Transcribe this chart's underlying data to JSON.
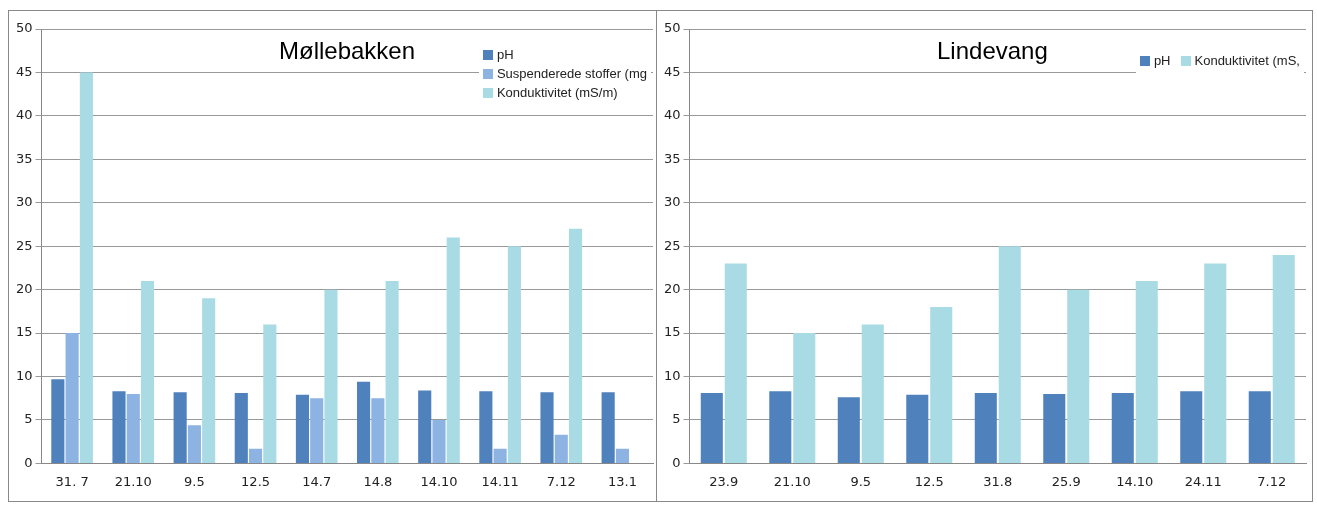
{
  "chart_data": [
    {
      "type": "bar",
      "title": "Møllebakken",
      "categories": [
        "31. 7",
        "21.10",
        "9.5",
        "12.5",
        "14.7",
        "14.8",
        "14.10",
        "14.11",
        "7.12",
        "13.1"
      ],
      "series": [
        {
          "name": "pH",
          "color": "#4f81bd",
          "values": [
            9.7,
            8.3,
            8.2,
            8.1,
            7.9,
            9.4,
            8.4,
            8.3,
            8.2,
            8.2
          ]
        },
        {
          "name": "Suspenderede stoffer (mg",
          "color": "#8db3e2",
          "values": [
            15,
            8,
            4.4,
            1.7,
            7.5,
            7.5,
            5,
            1.7,
            3.3,
            1.7
          ]
        },
        {
          "name": "Konduktivitet (mS/m)",
          "color": "#a9dbe4",
          "values": [
            45,
            21,
            19,
            16,
            20,
            21,
            26,
            25,
            27,
            null
          ]
        }
      ],
      "ylim": [
        0,
        50
      ],
      "yticks": [
        0,
        5,
        10,
        15,
        20,
        25,
        30,
        35,
        40,
        45,
        50
      ],
      "grid": "y",
      "legend": "top right"
    },
    {
      "type": "bar",
      "title": "Lindevang",
      "categories": [
        "23.9",
        "21.10",
        "9.5",
        "12.5",
        "31.8",
        "25.9",
        "14.10",
        "24.11",
        "7.12"
      ],
      "series": [
        {
          "name": "pH",
          "color": "#4f81bd",
          "values": [
            8.1,
            8.3,
            7.6,
            7.9,
            8.1,
            8.0,
            8.1,
            8.3,
            8.3
          ]
        },
        {
          "name": "Konduktivitet (mS,",
          "color": "#a9dbe4",
          "values": [
            23,
            15,
            16,
            18,
            25,
            20,
            21,
            23,
            24
          ]
        }
      ],
      "ylim": [
        0,
        50
      ],
      "yticks": [
        0,
        5,
        10,
        15,
        20,
        25,
        30,
        35,
        40,
        45,
        50
      ],
      "grid": "y",
      "legend": "top right"
    }
  ]
}
